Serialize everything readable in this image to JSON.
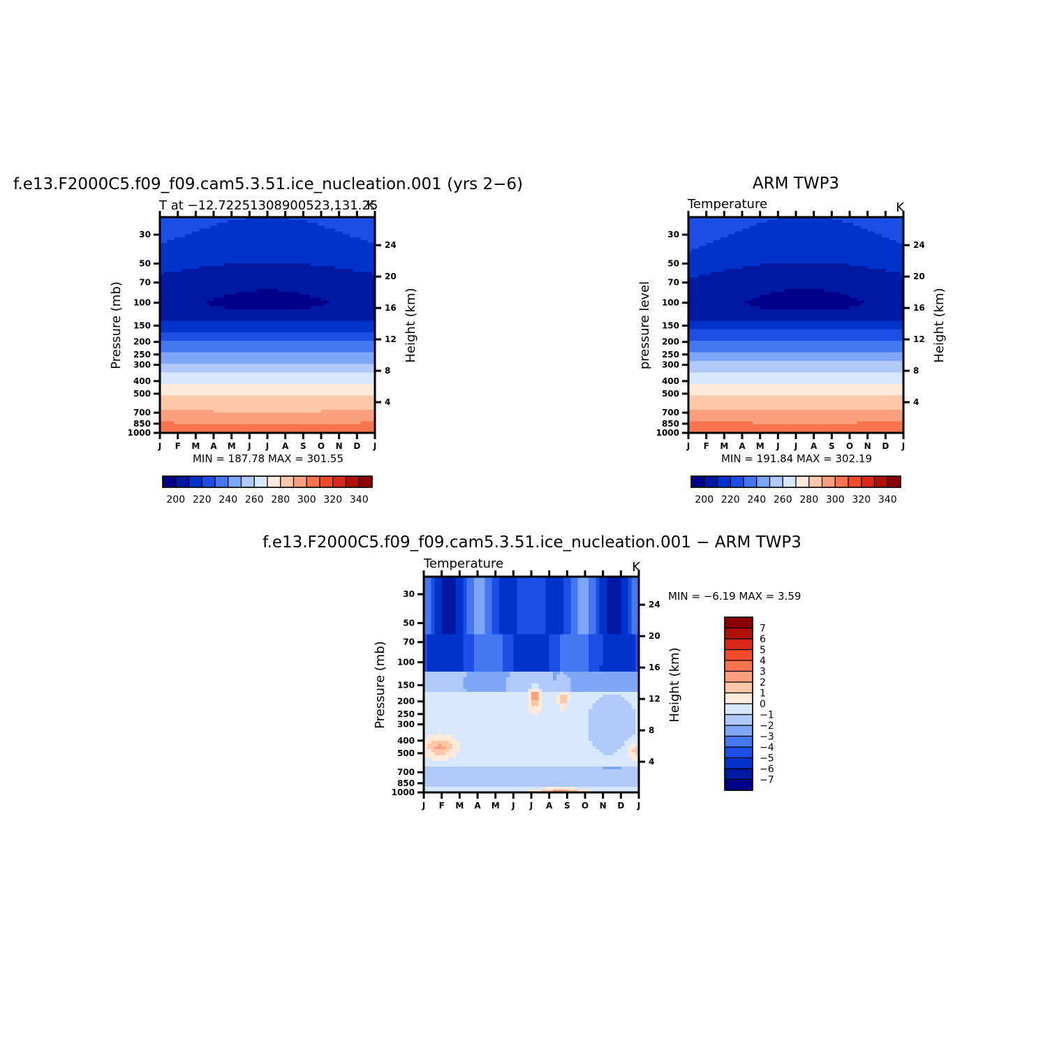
{
  "chart_data": [
    {
      "id": "model",
      "type": "heatmap",
      "title": "f.e13.F2000C5.f09_f09.cam5.3.51.ice_nucleation.001 (yrs 2−6)",
      "subtitle_left": "T at −12.72251308900523,131.25",
      "units": "K",
      "ylabel": "Pressure (mb)",
      "ylabel_right": "Height (km)",
      "x_ticks": [
        "J",
        "F",
        "M",
        "A",
        "M",
        "J",
        "J",
        "A",
        "S",
        "O",
        "N",
        "D",
        "J"
      ],
      "y_ticks": [
        30,
        50,
        70,
        100,
        150,
        200,
        250,
        300,
        400,
        500,
        700,
        850,
        1000
      ],
      "y_ticks_right": [
        24,
        20,
        16,
        12,
        8,
        4
      ],
      "ylim": [
        1000,
        22
      ],
      "min_max_text": "MIN = 187.78 MAX = 301.55",
      "levels": [
        190,
        200,
        210,
        220,
        230,
        240,
        250,
        260,
        270,
        280,
        290,
        300,
        310,
        320,
        330,
        340
      ],
      "colorbar_labels": [
        "200",
        "220",
        "240",
        "260",
        "280",
        "300",
        "320",
        "340"
      ]
    },
    {
      "id": "obs",
      "type": "heatmap",
      "title": "ARM TWP3",
      "subtitle_left": "Temperature",
      "units": "K",
      "ylabel": "pressure level",
      "ylabel_right": "Height (km)",
      "x_ticks": [
        "J",
        "F",
        "M",
        "A",
        "M",
        "J",
        "J",
        "A",
        "S",
        "O",
        "N",
        "D",
        "J"
      ],
      "y_ticks": [
        30,
        50,
        70,
        100,
        150,
        200,
        250,
        300,
        400,
        500,
        700,
        850,
        1000
      ],
      "y_ticks_right": [
        24,
        20,
        16,
        12,
        8,
        4
      ],
      "ylim": [
        1000,
        22
      ],
      "min_max_text": "MIN = 191.84 MAX = 302.19",
      "levels": [
        190,
        200,
        210,
        220,
        230,
        240,
        250,
        260,
        270,
        280,
        290,
        300,
        310,
        320,
        330,
        340
      ],
      "colorbar_labels": [
        "200",
        "220",
        "240",
        "260",
        "280",
        "300",
        "320",
        "340"
      ]
    },
    {
      "id": "diff",
      "type": "heatmap",
      "title": "f.e13.F2000C5.f09_f09.cam5.3.51.ice_nucleation.001 − ARM TWP3",
      "subtitle_left": "Temperature",
      "units": "K",
      "ylabel": "Pressure (mb)",
      "ylabel_right": "Height (km)",
      "x_ticks": [
        "J",
        "F",
        "M",
        "A",
        "M",
        "J",
        "J",
        "A",
        "S",
        "O",
        "N",
        "D",
        "J"
      ],
      "y_ticks": [
        30,
        50,
        70,
        100,
        150,
        200,
        250,
        300,
        400,
        500,
        700,
        850,
        1000
      ],
      "y_ticks_right": [
        24,
        20,
        16,
        12,
        8,
        4
      ],
      "ylim": [
        1000,
        22
      ],
      "min_max_text": "MIN = −6.19 MAX = 3.59",
      "levels": [
        -7,
        -6,
        -5,
        -4,
        -3,
        -2,
        -1,
        0,
        1,
        2,
        3,
        4,
        5,
        6,
        7
      ],
      "colorbar_labels": [
        "7",
        "6",
        "5",
        "4",
        "3",
        "2",
        "1",
        "0",
        "−1",
        "−2",
        "−3",
        "−4",
        "−5",
        "−6",
        "−7"
      ]
    }
  ],
  "palette": [
    "#00008b",
    "#0019a3",
    "#0033cc",
    "#1a4ee6",
    "#4577f2",
    "#7ea6f7",
    "#b0c9fa",
    "#d7e7fd",
    "#feeadb",
    "#fdc7a8",
    "#fba07e",
    "#f7744f",
    "#f24a2a",
    "#d9281a",
    "#b01008",
    "#8b0000"
  ]
}
